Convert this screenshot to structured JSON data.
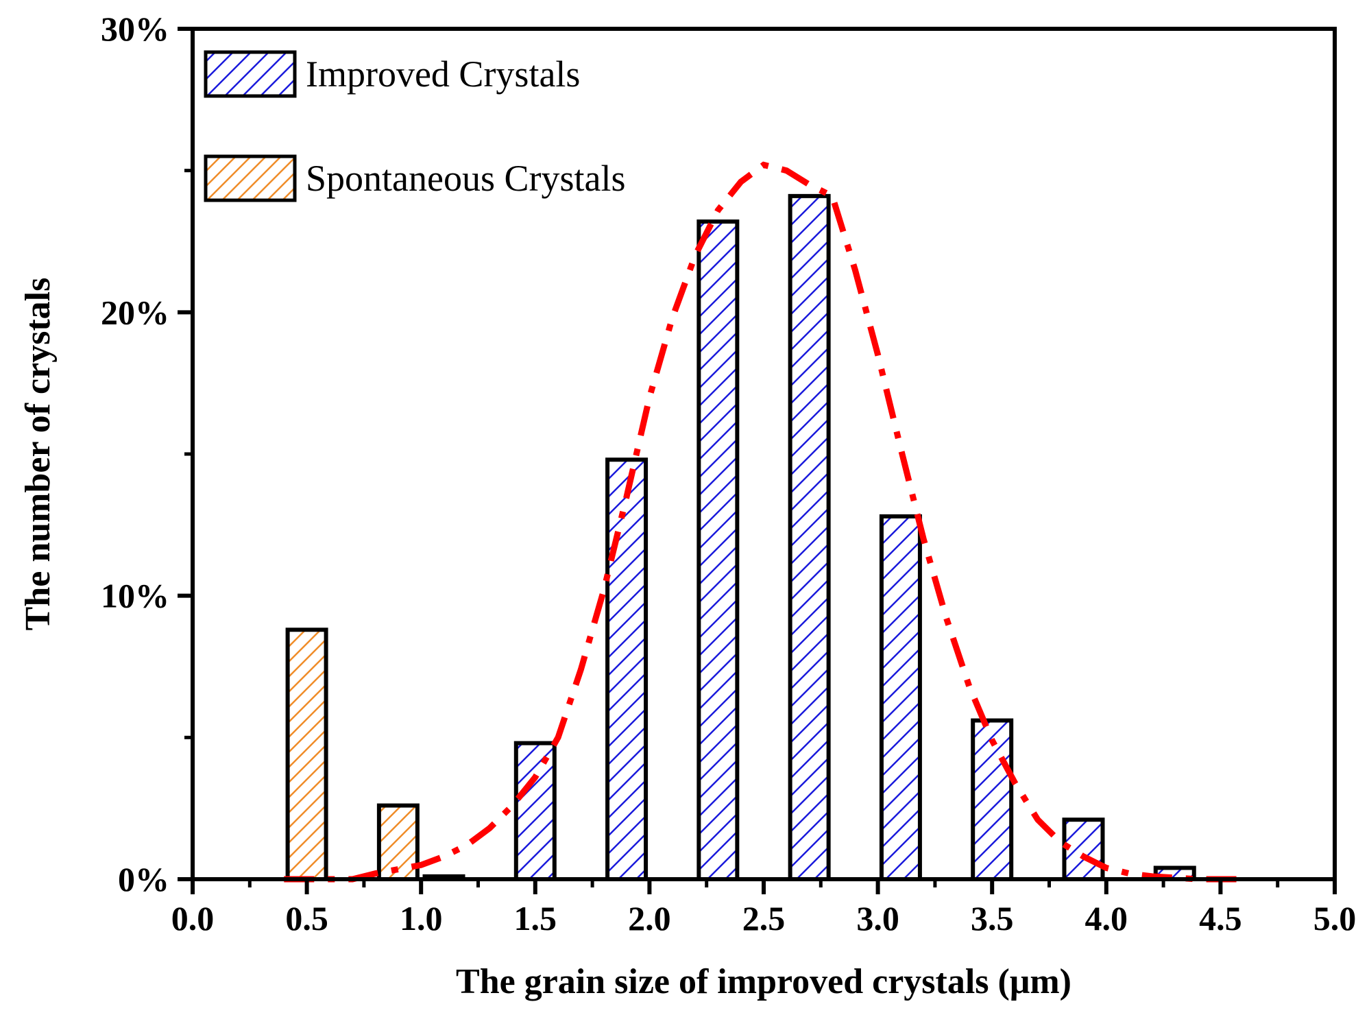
{
  "chart_data": {
    "type": "bar",
    "title": "",
    "xlabel": "The grain size of improved crystals  (μm)",
    "ylabel": "The number of crystals",
    "xlim": [
      0.0,
      5.0
    ],
    "ylim": [
      0,
      30
    ],
    "x_ticks": [
      "0.0",
      "0.5",
      "1.0",
      "1.5",
      "2.0",
      "2.5",
      "3.0",
      "3.5",
      "4.0",
      "4.5",
      "5.0"
    ],
    "y_ticks": [
      "0%",
      "10%",
      "20%",
      "30%"
    ],
    "legend_position": "top-left",
    "series": [
      {
        "name": "Improved Crystals",
        "color": "#1a1adc",
        "pattern": "diagonal-hatch",
        "x": [
          1.1,
          1.5,
          1.9,
          2.3,
          2.7,
          3.1,
          3.5,
          3.9,
          4.3
        ],
        "values": [
          0.1,
          4.8,
          14.8,
          23.2,
          24.1,
          12.8,
          5.6,
          2.1,
          0.4
        ]
      },
      {
        "name": "Spontaneous Crystals",
        "color": "#f08c28",
        "pattern": "diagonal-hatch",
        "x": [
          0.5,
          0.9
        ],
        "values": [
          8.8,
          2.6
        ]
      }
    ],
    "fit_curve": {
      "style": "dash-dot",
      "color": "#ff0000",
      "x": [
        0.4,
        0.5,
        0.6,
        0.7,
        0.8,
        0.9,
        1.0,
        1.1,
        1.2,
        1.3,
        1.4,
        1.5,
        1.6,
        1.7,
        1.8,
        1.9,
        2.0,
        2.1,
        2.2,
        2.3,
        2.4,
        2.5,
        2.6,
        2.7,
        2.8,
        2.9,
        3.0,
        3.1,
        3.2,
        3.3,
        3.4,
        3.5,
        3.6,
        3.7,
        3.8,
        3.9,
        4.0,
        4.1,
        4.2,
        4.3,
        4.4,
        4.5,
        4.6
      ],
      "y": [
        0.0,
        0.0,
        0.0,
        0.0,
        0.2,
        0.35,
        0.5,
        0.8,
        1.2,
        1.8,
        2.6,
        3.6,
        5.0,
        7.4,
        10.2,
        13.5,
        17.0,
        19.8,
        22.0,
        23.6,
        24.6,
        25.2,
        25.0,
        24.5,
        24.1,
        21.5,
        18.5,
        15.2,
        12.0,
        9.2,
        6.8,
        4.9,
        3.4,
        2.1,
        1.3,
        0.8,
        0.4,
        0.2,
        0.1,
        0.05,
        0.0,
        0.0,
        0.0
      ]
    }
  }
}
